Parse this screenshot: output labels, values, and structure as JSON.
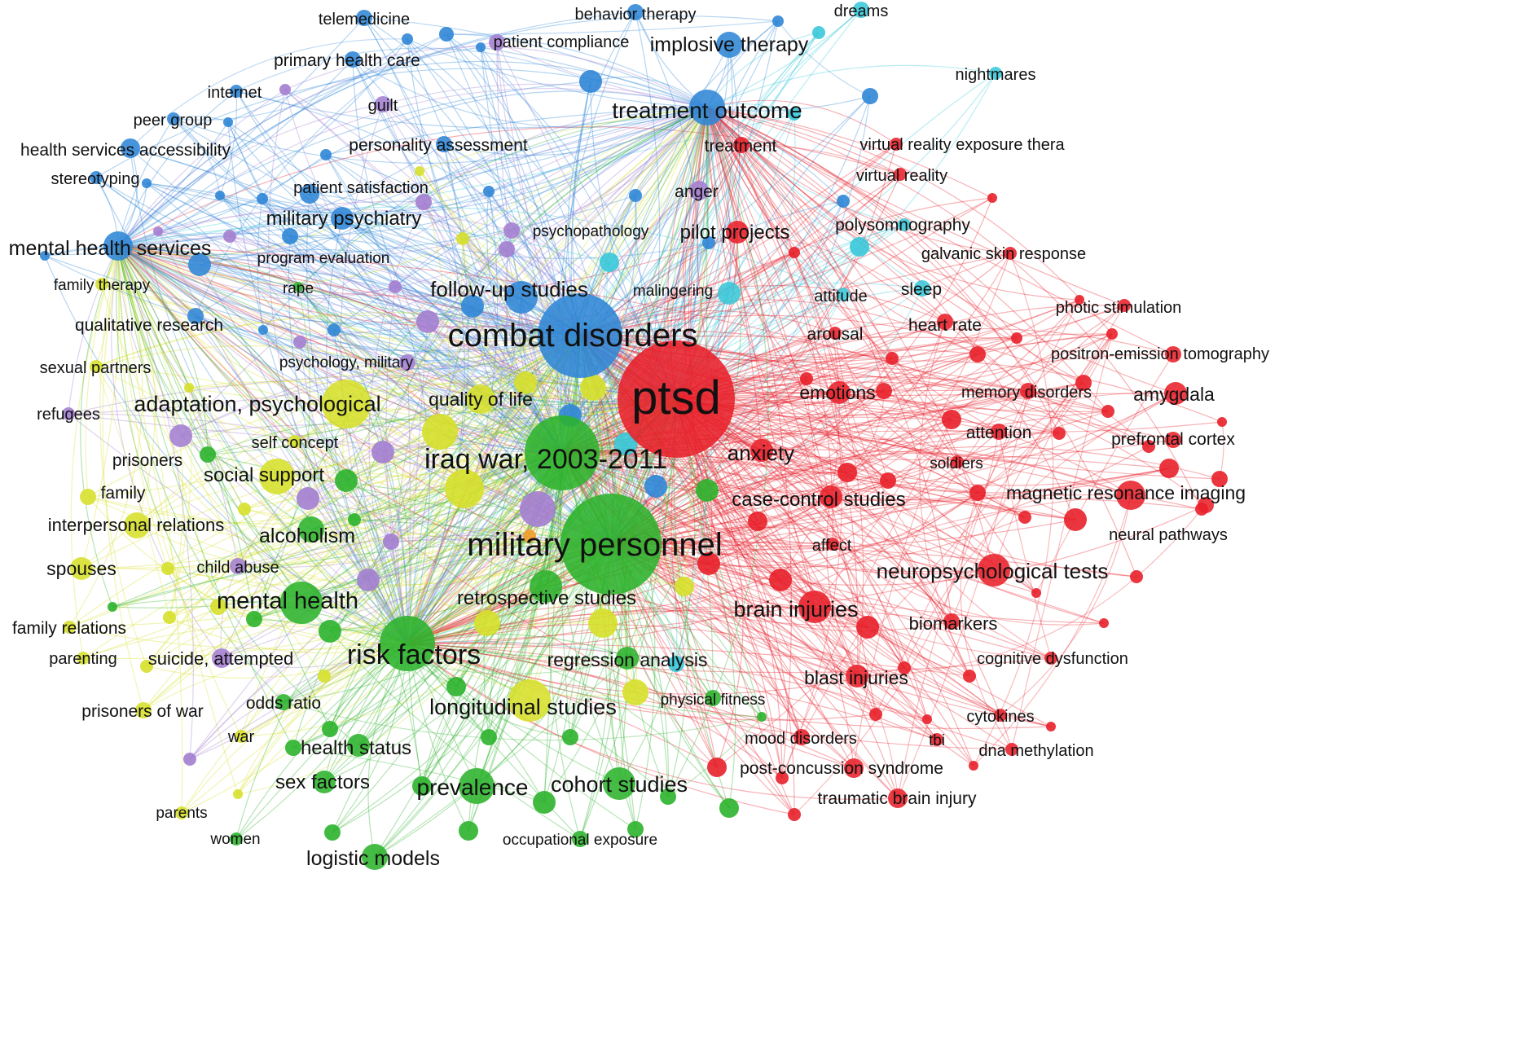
{
  "palette": {
    "red": "#e8202a",
    "green": "#2cb32c",
    "blue": "#2f86d6",
    "yellow": "#d6e02a",
    "purple": "#a37ed0",
    "cyan": "#3ac8da",
    "orange": "#f39c2a"
  },
  "nodes": [
    {
      "id": "ptsd",
      "label": "ptsd",
      "cluster": "red",
      "weight": 10
    },
    {
      "id": "military_personnel",
      "label": "military personnel",
      "cluster": "green",
      "weight": 9
    },
    {
      "id": "combat_disorders",
      "label": "combat disorders",
      "cluster": "blue",
      "weight": 8
    },
    {
      "id": "iraq_war",
      "label": "iraq war, 2003-2011",
      "cluster": "green",
      "weight": 8
    },
    {
      "id": "risk_factors",
      "label": "risk factors",
      "cluster": "green",
      "weight": 6
    },
    {
      "id": "treatment_outcome",
      "label": "treatment outcome",
      "cluster": "blue",
      "weight": 5
    },
    {
      "id": "mental_health_services",
      "label": "mental health services",
      "cluster": "blue",
      "weight": 4
    },
    {
      "id": "adaptation_psychological",
      "label": "adaptation, psychological",
      "cluster": "yellow",
      "weight": 5
    },
    {
      "id": "mental_health",
      "label": "mental health",
      "cluster": "green",
      "weight": 5
    },
    {
      "id": "longitudinal_studies",
      "label": "longitudinal studies",
      "cluster": "yellow",
      "weight": 5
    },
    {
      "id": "prevalence",
      "label": "prevalence",
      "cluster": "green",
      "weight": 5
    },
    {
      "id": "cohort_studies",
      "label": "cohort studies",
      "cluster": "green",
      "weight": 4
    },
    {
      "id": "neuropsychological_tests",
      "label": "neuropsychological tests",
      "cluster": "red",
      "weight": 4
    },
    {
      "id": "brain_injuries",
      "label": "brain injuries",
      "cluster": "red",
      "weight": 4
    },
    {
      "id": "follow_up_studies",
      "label": "follow-up studies",
      "cluster": "blue",
      "weight": 4
    },
    {
      "id": "implosive_therapy",
      "label": "implosive therapy",
      "cluster": "blue",
      "weight": 4
    },
    {
      "id": "military_psychiatry",
      "label": "military psychiatry",
      "cluster": "blue",
      "weight": 3
    },
    {
      "id": "social_support",
      "label": "social support",
      "cluster": "yellow",
      "weight": 4
    },
    {
      "id": "retrospective_studies",
      "label": "retrospective studies",
      "cluster": "green",
      "weight": 4
    },
    {
      "id": "alcoholism",
      "label": "alcoholism",
      "cluster": "green",
      "weight": 3
    },
    {
      "id": "interpersonal_relations",
      "label": "interpersonal relations",
      "cluster": "yellow",
      "weight": 3
    },
    {
      "id": "magnetic_resonance_imaging",
      "label": "magnetic resonance imaging",
      "cluster": "red",
      "weight": 4
    },
    {
      "id": "anxiety",
      "label": "anxiety",
      "cluster": "red",
      "weight": 3
    },
    {
      "id": "case_control_studies",
      "label": "case-control studies",
      "cluster": "red",
      "weight": 3
    },
    {
      "id": "logistic_models",
      "label": "logistic models",
      "cluster": "green",
      "weight": 3
    },
    {
      "id": "sex_factors",
      "label": "sex factors",
      "cluster": "green",
      "weight": 3
    },
    {
      "id": "health_status",
      "label": "health status",
      "cluster": "green",
      "weight": 3
    },
    {
      "id": "spouses",
      "label": "spouses",
      "cluster": "yellow",
      "weight": 3
    },
    {
      "id": "quality_of_life",
      "label": "quality of life",
      "cluster": "yellow",
      "weight": 3
    },
    {
      "id": "emotions",
      "label": "emotions",
      "cluster": "red",
      "weight": 3
    },
    {
      "id": "pilot_projects",
      "label": "pilot projects",
      "cluster": "red",
      "weight": 3
    },
    {
      "id": "regression_analysis",
      "label": "regression analysis",
      "cluster": "green",
      "weight": 3
    },
    {
      "id": "blast_injuries",
      "label": "blast injuries",
      "cluster": "red",
      "weight": 3
    },
    {
      "id": "amygdala",
      "label": "amygdala",
      "cluster": "red",
      "weight": 2
    },
    {
      "id": "telemedicine",
      "label": "telemedicine",
      "cluster": "blue",
      "weight": 2
    },
    {
      "id": "behavior_therapy",
      "label": "behavior therapy",
      "cluster": "blue",
      "weight": 2
    },
    {
      "id": "dreams",
      "label": "dreams",
      "cluster": "cyan",
      "weight": 2
    },
    {
      "id": "patient_compliance",
      "label": "patient compliance",
      "cluster": "purple",
      "weight": 2
    },
    {
      "id": "primary_health_care",
      "label": "primary health care",
      "cluster": "blue",
      "weight": 2
    },
    {
      "id": "internet",
      "label": "internet",
      "cluster": "blue",
      "weight": 2
    },
    {
      "id": "nightmares",
      "label": "nightmares",
      "cluster": "cyan",
      "weight": 2
    },
    {
      "id": "peer_group",
      "label": "peer group",
      "cluster": "blue",
      "weight": 2
    },
    {
      "id": "guilt",
      "label": "guilt",
      "cluster": "purple",
      "weight": 2
    },
    {
      "id": "health_services_accessibility",
      "label": "health services accessibility",
      "cluster": "blue",
      "weight": 2
    },
    {
      "id": "personality_assessment",
      "label": "personality assessment",
      "cluster": "blue",
      "weight": 2
    },
    {
      "id": "treatment",
      "label": "treatment",
      "cluster": "red",
      "weight": 2
    },
    {
      "id": "virtual_reality_exposure",
      "label": "virtual reality exposure thera",
      "cluster": "red",
      "weight": 2
    },
    {
      "id": "stereotyping",
      "label": "stereotyping",
      "cluster": "blue",
      "weight": 2
    },
    {
      "id": "virtual_reality",
      "label": "virtual reality",
      "cluster": "red",
      "weight": 2
    },
    {
      "id": "patient_satisfaction",
      "label": "patient satisfaction",
      "cluster": "blue",
      "weight": 2
    },
    {
      "id": "anger",
      "label": "anger",
      "cluster": "purple",
      "weight": 2
    },
    {
      "id": "polysomnography",
      "label": "polysomnography",
      "cluster": "cyan",
      "weight": 2
    },
    {
      "id": "psychopathology",
      "label": "psychopathology",
      "cluster": "purple",
      "weight": 2
    },
    {
      "id": "galvanic_skin_response",
      "label": "galvanic skin response",
      "cluster": "red",
      "weight": 2
    },
    {
      "id": "program_evaluation",
      "label": "program evaluation",
      "cluster": "blue",
      "weight": 2
    },
    {
      "id": "family_therapy",
      "label": "family therapy",
      "cluster": "yellow",
      "weight": 2
    },
    {
      "id": "rape",
      "label": "rape",
      "cluster": "green",
      "weight": 2
    },
    {
      "id": "malingering",
      "label": "malingering",
      "cluster": "cyan",
      "weight": 2
    },
    {
      "id": "attitude",
      "label": "attitude",
      "cluster": "cyan",
      "weight": 2
    },
    {
      "id": "sleep",
      "label": "sleep",
      "cluster": "cyan",
      "weight": 2
    },
    {
      "id": "photic_stimulation",
      "label": "photic stimulation",
      "cluster": "red",
      "weight": 2
    },
    {
      "id": "qualitative_research",
      "label": "qualitative research",
      "cluster": "blue",
      "weight": 2
    },
    {
      "id": "arousal",
      "label": "arousal",
      "cluster": "red",
      "weight": 2
    },
    {
      "id": "heart_rate",
      "label": "heart rate",
      "cluster": "red",
      "weight": 2
    },
    {
      "id": "pet",
      "label": "positron-emission tomography",
      "cluster": "red",
      "weight": 2
    },
    {
      "id": "sexual_partners",
      "label": "sexual partners",
      "cluster": "yellow",
      "weight": 2
    },
    {
      "id": "psychology_military",
      "label": "psychology, military",
      "cluster": "purple",
      "weight": 2
    },
    {
      "id": "memory_disorders",
      "label": "memory disorders",
      "cluster": "red",
      "weight": 2
    },
    {
      "id": "refugees",
      "label": "refugees",
      "cluster": "purple",
      "weight": 2
    },
    {
      "id": "attention",
      "label": "attention",
      "cluster": "red",
      "weight": 2
    },
    {
      "id": "prefrontal_cortex",
      "label": "prefrontal cortex",
      "cluster": "red",
      "weight": 2
    },
    {
      "id": "self_concept",
      "label": "self concept",
      "cluster": "yellow",
      "weight": 2
    },
    {
      "id": "prisoners",
      "label": "prisoners",
      "cluster": "purple",
      "weight": 2
    },
    {
      "id": "soldiers",
      "label": "soldiers",
      "cluster": "red",
      "weight": 2
    },
    {
      "id": "family",
      "label": "family",
      "cluster": "yellow",
      "weight": 2
    },
    {
      "id": "neural_pathways",
      "label": "neural pathways",
      "cluster": "red",
      "weight": 2
    },
    {
      "id": "affect",
      "label": "affect",
      "cluster": "red",
      "weight": 2
    },
    {
      "id": "child_abuse",
      "label": "child abuse",
      "cluster": "purple",
      "weight": 2
    },
    {
      "id": "biomarkers",
      "label": "biomarkers",
      "cluster": "red",
      "weight": 2
    },
    {
      "id": "family_relations",
      "label": "family relations",
      "cluster": "yellow",
      "weight": 2
    },
    {
      "id": "parenting",
      "label": "parenting",
      "cluster": "yellow",
      "weight": 2
    },
    {
      "id": "suicide_attempted",
      "label": "suicide, attempted",
      "cluster": "purple",
      "weight": 2
    },
    {
      "id": "cognitive_dysfunction",
      "label": "cognitive dysfunction",
      "cluster": "red",
      "weight": 2
    },
    {
      "id": "physical_fitness",
      "label": "physical fitness",
      "cluster": "green",
      "weight": 2
    },
    {
      "id": "odds_ratio",
      "label": "odds ratio",
      "cluster": "green",
      "weight": 2
    },
    {
      "id": "prisoners_of_war",
      "label": "prisoners of war",
      "cluster": "yellow",
      "weight": 2
    },
    {
      "id": "cytokines",
      "label": "cytokines",
      "cluster": "red",
      "weight": 2
    },
    {
      "id": "war",
      "label": "war",
      "cluster": "yellow",
      "weight": 2
    },
    {
      "id": "mood_disorders",
      "label": "mood disorders",
      "cluster": "red",
      "weight": 2
    },
    {
      "id": "tbi",
      "label": "tbi",
      "cluster": "red",
      "weight": 2
    },
    {
      "id": "dna_methylation",
      "label": "dna methylation",
      "cluster": "red",
      "weight": 2
    },
    {
      "id": "post_concussion_syndrome",
      "label": "post-concussion syndrome",
      "cluster": "red",
      "weight": 2
    },
    {
      "id": "traumatic_brain_injury",
      "label": "traumatic brain injury",
      "cluster": "red",
      "weight": 2
    },
    {
      "id": "parents",
      "label": "parents",
      "cluster": "yellow",
      "weight": 2
    },
    {
      "id": "women",
      "label": "women",
      "cluster": "green",
      "weight": 2
    },
    {
      "id": "occupational_exposure",
      "label": "occupational exposure",
      "cluster": "green",
      "weight": 2
    }
  ]
}
